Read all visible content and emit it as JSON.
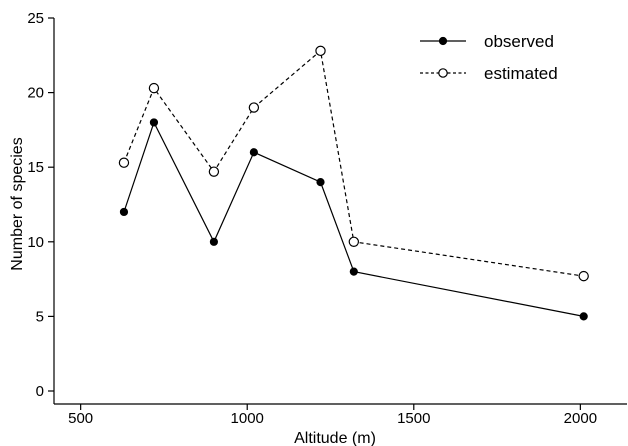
{
  "chart_data": {
    "type": "line",
    "title": "",
    "xlabel": "Altitude (m)",
    "ylabel": "Number of species",
    "xlim": [
      420,
      2140
    ],
    "ylim": [
      0,
      25
    ],
    "xticks": [
      500,
      1000,
      1500,
      2000
    ],
    "xtick_labels": [
      "500",
      "1000",
      "1500",
      "2000"
    ],
    "yticks": [
      0,
      5,
      10,
      15,
      20,
      25
    ],
    "ytick_labels": [
      "0",
      "5",
      "10",
      "15",
      "20",
      "25"
    ],
    "grid": false,
    "legend_position": "top-right",
    "series": [
      {
        "name": "observed",
        "line_style": "solid",
        "marker": "filled-circle",
        "color": "#000000",
        "x": [
          630,
          720,
          900,
          1020,
          1220,
          1320,
          2010
        ],
        "y": [
          12,
          18,
          10,
          16,
          14,
          8,
          5
        ]
      },
      {
        "name": "estimated",
        "line_style": "dashed",
        "marker": "open-circle",
        "color": "#000000",
        "x": [
          630,
          720,
          900,
          1020,
          1220,
          1320,
          2010
        ],
        "y": [
          15.3,
          20.3,
          14.7,
          19,
          22.8,
          10,
          7.7
        ]
      }
    ]
  }
}
